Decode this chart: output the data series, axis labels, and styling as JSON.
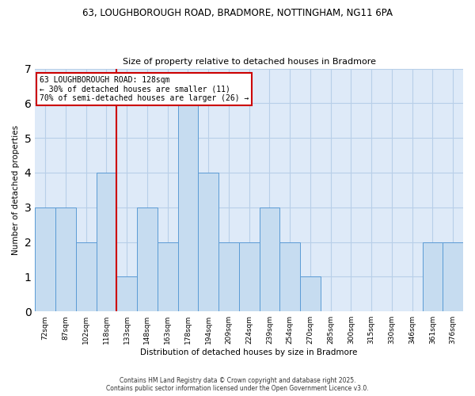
{
  "title1": "63, LOUGHBOROUGH ROAD, BRADMORE, NOTTINGHAM, NG11 6PA",
  "title2": "Size of property relative to detached houses in Bradmore",
  "xlabel": "Distribution of detached houses by size in Bradmore",
  "ylabel": "Number of detached properties",
  "categories": [
    "72sqm",
    "87sqm",
    "102sqm",
    "118sqm",
    "133sqm",
    "148sqm",
    "163sqm",
    "178sqm",
    "194sqm",
    "209sqm",
    "224sqm",
    "239sqm",
    "254sqm",
    "270sqm",
    "285sqm",
    "300sqm",
    "315sqm",
    "330sqm",
    "346sqm",
    "361sqm",
    "376sqm"
  ],
  "values": [
    3,
    3,
    2,
    4,
    1,
    3,
    2,
    6,
    4,
    2,
    2,
    3,
    2,
    1,
    0,
    0,
    0,
    0,
    0,
    2,
    2
  ],
  "bar_color": "#c6dcf0",
  "bar_edge_color": "#5b9bd5",
  "vline_x": 3.5,
  "annotation_line1": "63 LOUGHBOROUGH ROAD: 128sqm",
  "annotation_line2": "← 30% of detached houses are smaller (11)",
  "annotation_line3": "70% of semi-detached houses are larger (26) →",
  "annotation_box_color": "white",
  "annotation_box_edgecolor": "#cc0000",
  "vline_color": "#cc0000",
  "ylim": [
    0,
    7
  ],
  "yticks": [
    0,
    1,
    2,
    3,
    4,
    5,
    6,
    7
  ],
  "footer1": "Contains HM Land Registry data © Crown copyright and database right 2025.",
  "footer2": "Contains public sector information licensed under the Open Government Licence v3.0.",
  "bg_color": "#ffffff",
  "plot_bg_color": "#deeaf8",
  "grid_color": "#b8cfe8"
}
